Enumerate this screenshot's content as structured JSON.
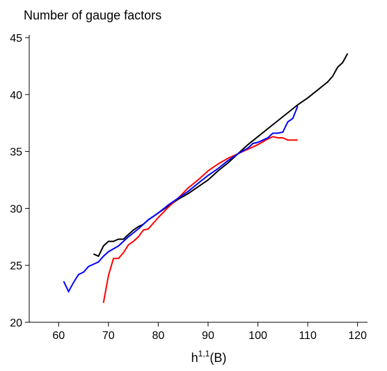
{
  "chart_data": {
    "type": "line",
    "title": "Number of gauge factors",
    "x_label": [
      "h",
      "1,1",
      "(B)"
    ],
    "xlim": [
      54.1,
      122
    ],
    "xticks": [
      60,
      70,
      80,
      90,
      100,
      110,
      120
    ],
    "ylim": [
      20,
      45
    ],
    "yticks": [
      20,
      25,
      30,
      35,
      40,
      45
    ],
    "series": [
      {
        "color": "#000000",
        "x": [
          67,
          68,
          69,
          70,
          71,
          72,
          73,
          74,
          75,
          76,
          77,
          78,
          79,
          80,
          82,
          84,
          86,
          88,
          90,
          92,
          94,
          96,
          98,
          100,
          102,
          104,
          106,
          108,
          110,
          112,
          114,
          115,
          116,
          117,
          118
        ],
        "values": [
          26,
          25.8,
          26.7,
          27.1,
          27.1,
          27.3,
          27.3,
          27.7,
          28.1,
          28.4,
          28.6,
          29.0,
          29.3,
          29.6,
          30.2,
          30.8,
          31.3,
          31.9,
          32.5,
          33.3,
          34.0,
          34.8,
          35.6,
          36.3,
          37.0,
          37.7,
          38.4,
          39.1,
          39.7,
          40.4,
          41.1,
          41.6,
          42.4,
          42.8,
          43.6
        ]
      },
      {
        "color": "#ff0000",
        "x": [
          69,
          70,
          71,
          72,
          73,
          74,
          75,
          76,
          77,
          78,
          80,
          82,
          84,
          86,
          88,
          90,
          92,
          94,
          96,
          98,
          100,
          102,
          103,
          104,
          105,
          106,
          107,
          108
        ],
        "values": [
          21.7,
          24.1,
          25.6,
          25.6,
          26.1,
          26.8,
          27.1,
          27.5,
          28.1,
          28.2,
          29.2,
          30.1,
          30.9,
          31.8,
          32.5,
          33.3,
          33.9,
          34.4,
          34.8,
          35.2,
          35.6,
          36.1,
          36.3,
          36.2,
          36.2,
          36.0,
          36.0,
          36.0
        ]
      },
      {
        "color": "#0000ff",
        "x": [
          61,
          62,
          63,
          64,
          65,
          66,
          67,
          68,
          69,
          70,
          72,
          74,
          76,
          78,
          80,
          82,
          84,
          86,
          88,
          90,
          92,
          94,
          96,
          98,
          99,
          100,
          102,
          103,
          104,
          105,
          106,
          107,
          108
        ],
        "values": [
          23.6,
          22.7,
          23.5,
          24.2,
          24.4,
          24.9,
          25.1,
          25.3,
          25.8,
          26.2,
          26.7,
          27.5,
          28.2,
          29.0,
          29.6,
          30.3,
          30.9,
          31.5,
          32.2,
          32.9,
          33.5,
          34.2,
          34.8,
          35.3,
          35.7,
          35.8,
          36.2,
          36.6,
          36.6,
          36.7,
          37.6,
          37.9,
          39.0
        ]
      }
    ]
  }
}
